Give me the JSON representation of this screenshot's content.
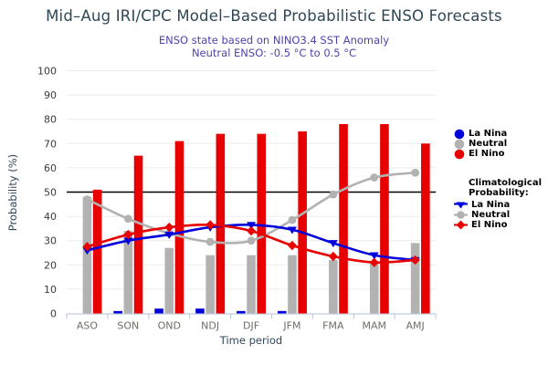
{
  "title": "Mid–Aug IRI/CPC Model–Based Probabilistic ENSO Forecasts",
  "subtitle_line1": "ENSO state based on NINO3.4 SST Anomaly",
  "subtitle_line2": "Neutral ENSO: -0.5 °C to 0.5 °C",
  "colors": {
    "title": "#2e4756",
    "subtitle": "#4f43ad",
    "la_nina": "#0000dd",
    "neutral": "#b2b2b2",
    "el_nino": "#e80000",
    "reference_line": "#000000",
    "gridline": "#ebebeb",
    "axis": "#c3cce4",
    "x_tick_label": "#6f6f64",
    "y_tick_label": "#3a3a3a",
    "axis_title": "#2f4858"
  },
  "legend": {
    "bars_items": [
      {
        "label": "La Nina"
      },
      {
        "label": "Neutral"
      },
      {
        "label": "El Nino"
      }
    ],
    "clim_header_line1": "Climatological",
    "clim_header_line2": "Probability:",
    "clim_items": [
      {
        "label": "La Nina"
      },
      {
        "label": "Neutral"
      },
      {
        "label": "El Nino"
      }
    ]
  },
  "chart_data": {
    "type": "bar",
    "categories": [
      "ASO",
      "SON",
      "OND",
      "NDJ",
      "DJF",
      "JFM",
      "FMA",
      "MAM",
      "AMJ"
    ],
    "bar_series": [
      {
        "name": "La Nina",
        "color_key": "la_nina",
        "values": [
          0,
          1,
          2,
          2,
          1,
          1,
          0,
          0,
          0
        ]
      },
      {
        "name": "Neutral",
        "color_key": "neutral",
        "values": [
          48,
          34,
          27,
          24,
          24,
          24,
          22,
          21,
          29
        ]
      },
      {
        "name": "El Nino",
        "color_key": "el_nino",
        "values": [
          51,
          65,
          71,
          74,
          74,
          75,
          78,
          78,
          70
        ]
      }
    ],
    "line_series": [
      {
        "name": "Neutral climatological probability",
        "color_key": "neutral",
        "marker": "circle",
        "values": [
          47,
          39,
          33,
          29.5,
          30,
          38.5,
          49,
          56,
          58
        ]
      },
      {
        "name": "La Nina climatological probability",
        "color_key": "la_nina",
        "marker": "triangle-down",
        "values": [
          26,
          30,
          32.5,
          35.5,
          36.5,
          34.5,
          29,
          24,
          22
        ]
      },
      {
        "name": "El Nino climatological probability",
        "color_key": "el_nino",
        "marker": "diamond",
        "values": [
          27.5,
          32.5,
          35.5,
          36.5,
          34,
          28,
          23.5,
          21,
          22
        ]
      }
    ],
    "xlabel": "Time period",
    "ylabel": "Probability (%)",
    "ylim": [
      0,
      100
    ],
    "ytick_step": 10,
    "reference_line": 50,
    "grid": true,
    "legend_position": "right"
  }
}
